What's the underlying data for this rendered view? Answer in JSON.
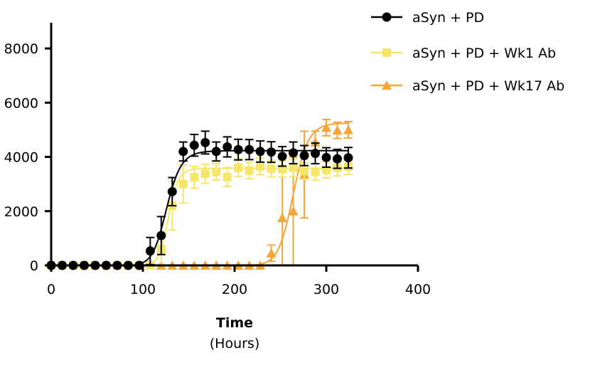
{
  "chart_data": {
    "type": "scatter",
    "title": "",
    "xlabel": "Time",
    "xlabel_sub": "(Hours)",
    "ylabel": "",
    "xlim": [
      0,
      400
    ],
    "ylim": [
      0,
      9000
    ],
    "x_ticks": [
      0,
      100,
      200,
      300,
      400
    ],
    "x_tick_labels": [
      "0",
      "100",
      "200",
      "300",
      "400"
    ],
    "y_ticks": [
      0,
      2000,
      4000,
      6000,
      8000
    ],
    "y_tick_labels": [
      "0",
      "2000",
      "4000",
      "6000",
      "8000"
    ],
    "legend_position": "top-right",
    "series": [
      {
        "name": "aSyn + PD",
        "color": "#000000",
        "marker": "circle",
        "x": [
          0,
          12,
          24,
          36,
          48,
          60,
          72,
          84,
          96,
          108,
          120,
          132,
          144,
          156,
          168,
          180,
          192,
          204,
          216,
          228,
          240,
          252,
          264,
          276,
          288,
          300,
          312,
          324
        ],
        "y": [
          0,
          0,
          0,
          0,
          0,
          0,
          0,
          0,
          0,
          530,
          1100,
          2720,
          4200,
          4430,
          4530,
          4200,
          4370,
          4270,
          4270,
          4200,
          4180,
          4020,
          4150,
          4050,
          4130,
          3980,
          3930,
          3970
        ],
        "err": [
          0,
          0,
          0,
          0,
          0,
          0,
          0,
          0,
          0,
          500,
          700,
          520,
          350,
          400,
          420,
          350,
          370,
          380,
          370,
          390,
          380,
          360,
          400,
          370,
          380,
          360,
          350,
          380
        ],
        "fit": {
          "min": 0,
          "max": 4230,
          "x50": 126,
          "slope": 4
        }
      },
      {
        "name": "aSyn + PD + Wk1 Ab",
        "color": "#f5e66a",
        "marker": "square",
        "x": [
          0,
          12,
          24,
          36,
          48,
          60,
          72,
          84,
          96,
          108,
          120,
          132,
          144,
          156,
          168,
          180,
          192,
          204,
          216,
          228,
          240,
          252,
          264,
          276,
          288,
          300,
          312,
          324
        ],
        "y": [
          0,
          0,
          0,
          0,
          0,
          0,
          0,
          0,
          0,
          0,
          600,
          2200,
          3000,
          3250,
          3380,
          3450,
          3260,
          3600,
          3500,
          3650,
          3570,
          3550,
          3600,
          3480,
          3450,
          3520,
          3600,
          3650
        ],
        "err": [
          0,
          0,
          0,
          0,
          0,
          0,
          0,
          0,
          0,
          0,
          600,
          900,
          700,
          400,
          350,
          300,
          350,
          320,
          300,
          310,
          300,
          300,
          320,
          300,
          300,
          290,
          300,
          300
        ],
        "fit": {
          "min": 0,
          "max": 3580,
          "x50": 128,
          "slope": 6
        }
      },
      {
        "name": "aSyn + PD + Wk17 Ab",
        "color": "#f6a537",
        "marker": "triangle",
        "x": [
          108,
          120,
          132,
          144,
          156,
          168,
          180,
          192,
          204,
          216,
          228,
          240,
          252,
          264,
          276,
          288,
          300,
          312,
          324
        ],
        "y": [
          0,
          0,
          0,
          0,
          0,
          0,
          0,
          0,
          0,
          0,
          0,
          450,
          1750,
          2000,
          3350,
          4550,
          5080,
          4980,
          5000
        ],
        "err": [
          0,
          0,
          0,
          0,
          0,
          0,
          0,
          0,
          0,
          0,
          0,
          300,
          1800,
          2000,
          1600,
          400,
          300,
          300,
          300
        ],
        "fit": {
          "min": 0,
          "max": 5250,
          "x50": 264,
          "slope": 8
        }
      }
    ]
  }
}
